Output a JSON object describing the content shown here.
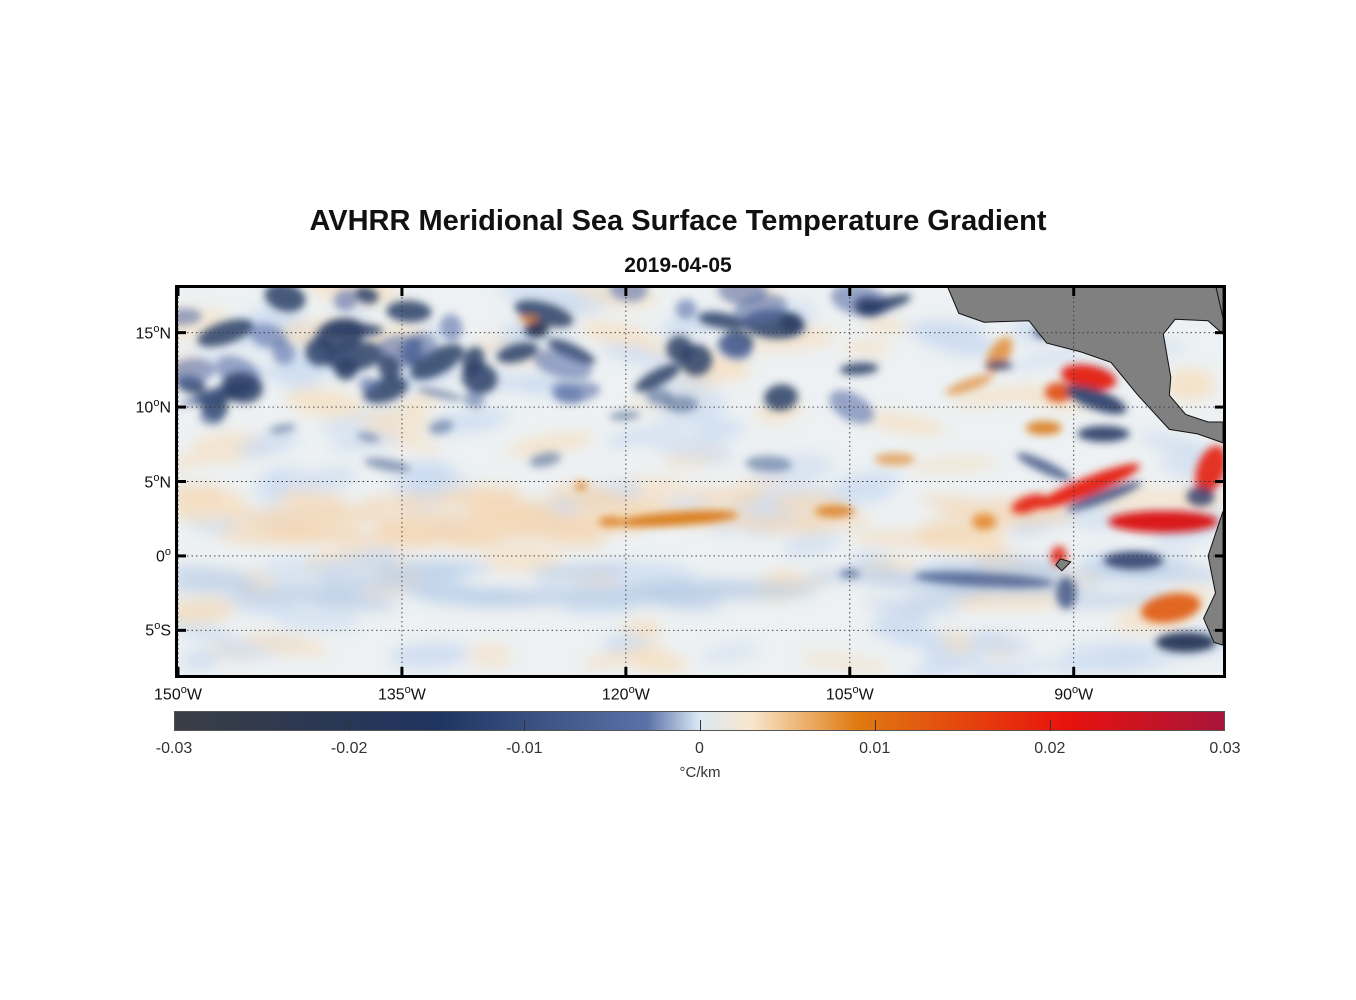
{
  "title": "AVHRR Meridional Sea Surface Temperature Gradient",
  "subtitle": "2019-04-05",
  "map": {
    "lat_range": [
      -8,
      18
    ],
    "lon_range": [
      -150,
      -80
    ],
    "lat_ticks": [
      {
        "value": 15,
        "deg": "15",
        "hemi": "N"
      },
      {
        "value": 10,
        "deg": "10",
        "hemi": "N"
      },
      {
        "value": 5,
        "deg": "5",
        "hemi": "N"
      },
      {
        "value": 0,
        "deg": "0",
        "hemi": ""
      },
      {
        "value": -5,
        "deg": "5",
        "hemi": "S"
      }
    ],
    "lon_ticks": [
      {
        "value": -150,
        "deg": "150",
        "hemi": "W"
      },
      {
        "value": -135,
        "deg": "135",
        "hemi": "W"
      },
      {
        "value": -120,
        "deg": "120",
        "hemi": "W"
      },
      {
        "value": -105,
        "deg": "105",
        "hemi": "W"
      },
      {
        "value": -90,
        "deg": "90",
        "hemi": "W"
      }
    ],
    "land_color": "#808080",
    "grid": "dotted"
  },
  "colorbar": {
    "min": -0.03,
    "max": 0.03,
    "ticks": [
      "-0.03",
      "-0.02",
      "-0.01",
      "0",
      "0.01",
      "0.02",
      "0.03"
    ],
    "unit": "°C/km",
    "colors": [
      "#3a3d44",
      "#1f3460",
      "#5a72a8",
      "#dbe8f4",
      "#f8e6cc",
      "#e07a10",
      "#e8120c",
      "#a8143a"
    ]
  }
}
